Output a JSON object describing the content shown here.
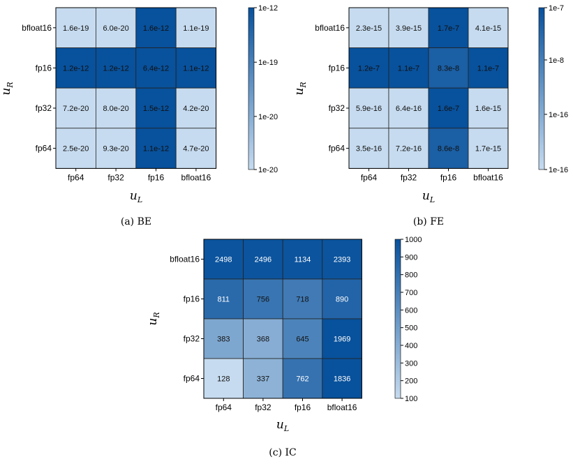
{
  "figure": {
    "panels": [
      {
        "caption": "(a) BE",
        "xlabel": "u",
        "xlabel_sub": "L",
        "ylabel": "u",
        "ylabel_sub": "R"
      },
      {
        "caption": "(b) FE",
        "xlabel": "u",
        "xlabel_sub": "L",
        "ylabel": "u",
        "ylabel_sub": "R"
      },
      {
        "caption": "(c) IC",
        "xlabel": "u",
        "xlabel_sub": "L",
        "ylabel": "u",
        "ylabel_sub": "R"
      }
    ]
  },
  "chart_data": [
    {
      "type": "heatmap",
      "caption": "(a) BE",
      "x_categories": [
        "fp64",
        "fp32",
        "fp16",
        "bfloat16"
      ],
      "y_categories": [
        "bfloat16",
        "fp16",
        "fp32",
        "fp64"
      ],
      "cells": [
        [
          "1.6e-19",
          "6.0e-20",
          "1.6e-12",
          "1.1e-19"
        ],
        [
          "1.2e-12",
          "1.2e-12",
          "6.4e-12",
          "1.1e-12"
        ],
        [
          "7.2e-20",
          "8.0e-20",
          "1.5e-12",
          "4.2e-20"
        ],
        [
          "2.5e-20",
          "9.3e-20",
          "1.1e-12",
          "4.7e-20"
        ]
      ],
      "colorbar_ticks": [
        "1e-12",
        "1e-19",
        "1e-20",
        "1e-20"
      ],
      "colormap": {
        "low": "#c6dbef",
        "high": "#08519c"
      }
    },
    {
      "type": "heatmap",
      "caption": "(b) FE",
      "x_categories": [
        "fp64",
        "fp32",
        "fp16",
        "bfloat16"
      ],
      "y_categories": [
        "bfloat16",
        "fp16",
        "fp32",
        "fp64"
      ],
      "cells": [
        [
          "2.3e-15",
          "3.9e-15",
          "1.7e-7",
          "4.1e-15"
        ],
        [
          "1.2e-7",
          "1.1e-7",
          "8.3e-8",
          "1.1e-7"
        ],
        [
          "5.9e-16",
          "6.4e-16",
          "1.6e-7",
          "1.6e-15"
        ],
        [
          "3.5e-16",
          "7.2e-16",
          "8.6e-8",
          "1.7e-15"
        ]
      ],
      "colorbar_ticks": [
        "1e-7",
        "1e-8",
        "1e-16",
        "1e-16"
      ],
      "colormap": {
        "low": "#c6dbef",
        "high": "#08519c"
      }
    },
    {
      "type": "heatmap",
      "caption": "(c) IC",
      "x_categories": [
        "fp64",
        "fp32",
        "fp16",
        "bfloat16"
      ],
      "y_categories": [
        "bfloat16",
        "fp16",
        "fp32",
        "fp64"
      ],
      "cells": [
        [
          "2498",
          "2496",
          "1134",
          "2393"
        ],
        [
          "811",
          "756",
          "718",
          "890"
        ],
        [
          "383",
          "368",
          "645",
          "1969"
        ],
        [
          "128",
          "337",
          "762",
          "1836"
        ]
      ],
      "colorbar_ticks": [
        "1000",
        "900",
        "800",
        "700",
        "600",
        "500",
        "400",
        "300",
        "200",
        "100"
      ],
      "colorbar_range": [
        100,
        1000
      ],
      "colormap": {
        "low": "#c6dbef",
        "high": "#08519c"
      }
    }
  ]
}
